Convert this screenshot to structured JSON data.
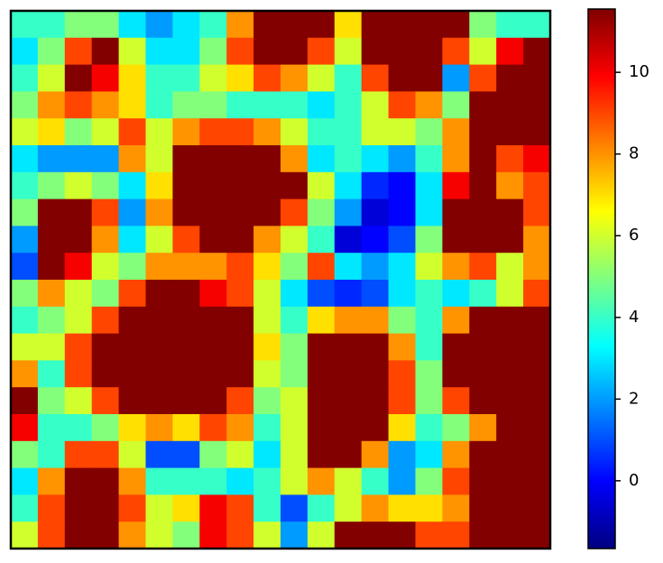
{
  "chart_data": {
    "type": "heatmap",
    "colormap": "jet",
    "zlim": [
      -1.66,
      11.55
    ],
    "zticks": [
      0,
      2,
      4,
      6,
      8,
      10
    ],
    "values": [
      [
        4,
        4,
        5,
        5,
        3,
        2,
        3,
        4,
        8,
        11.5,
        11.5,
        11.5,
        7,
        11.5,
        11.5,
        11.5,
        11.5,
        5,
        4,
        4
      ],
      [
        3,
        5,
        9,
        11.5,
        6,
        3,
        3,
        5,
        9,
        11.5,
        11.5,
        9,
        6,
        11.5,
        11.5,
        11.5,
        9,
        6,
        10,
        11.5
      ],
      [
        4,
        6,
        11.5,
        10,
        7,
        4,
        4,
        6,
        7,
        9,
        8,
        6,
        4,
        9,
        11.5,
        11.5,
        2,
        9,
        11.5,
        11.5
      ],
      [
        5,
        8,
        9,
        8,
        7,
        4,
        5,
        5,
        4,
        4,
        4,
        3,
        4,
        6,
        9,
        8,
        5,
        11.5,
        11.5,
        11.5
      ],
      [
        6,
        7,
        5,
        6,
        9,
        6,
        8,
        9,
        9,
        8,
        6,
        4,
        4,
        6,
        6,
        5,
        8,
        11.5,
        11.5,
        11.5
      ],
      [
        3,
        2,
        2,
        2,
        8,
        6,
        11.5,
        11.5,
        11.5,
        11.5,
        8,
        3,
        4,
        3,
        2,
        4,
        8,
        11.5,
        9,
        10
      ],
      [
        4,
        5,
        6,
        5,
        3,
        7,
        11.5,
        11.5,
        11.5,
        11.5,
        11.5,
        6,
        3,
        0.5,
        0,
        3,
        10,
        11.5,
        8,
        9
      ],
      [
        5,
        11.5,
        11.5,
        9,
        2,
        8,
        11.5,
        11.5,
        11.5,
        11.5,
        9,
        5,
        2,
        -0.5,
        0,
        3,
        11.5,
        11.5,
        11.5,
        9
      ],
      [
        2,
        11.5,
        11.5,
        8,
        3,
        6,
        9,
        11.5,
        11.5,
        8,
        6,
        4,
        -0.5,
        0,
        1,
        5,
        11.5,
        11.5,
        11.5,
        8
      ],
      [
        1,
        11.5,
        10,
        6,
        5,
        8,
        8,
        8,
        9,
        7,
        5,
        9,
        3,
        2,
        3,
        6,
        8,
        9,
        6,
        8
      ],
      [
        5,
        8,
        6,
        5,
        9,
        11.5,
        11.5,
        10,
        9,
        6,
        3,
        1,
        0.5,
        1,
        3,
        4,
        3,
        4,
        6,
        9
      ],
      [
        4,
        5,
        6,
        9,
        11.5,
        11.5,
        11.5,
        11.5,
        11.5,
        6,
        4,
        7,
        8,
        8,
        5,
        4,
        8,
        11.5,
        11.5,
        11.5
      ],
      [
        6,
        6,
        9,
        11.5,
        11.5,
        11.5,
        11.5,
        11.5,
        11.5,
        7,
        5,
        11.5,
        11.5,
        11.5,
        8,
        4,
        11.5,
        11.5,
        11.5,
        11.5
      ],
      [
        8,
        4,
        9,
        11.5,
        11.5,
        11.5,
        11.5,
        11.5,
        11.5,
        6,
        5,
        11.5,
        11.5,
        11.5,
        9,
        5,
        11.5,
        11.5,
        11.5,
        11.5
      ],
      [
        11.5,
        5,
        6,
        9,
        11.5,
        11.5,
        11.5,
        11.5,
        9,
        5,
        6,
        11.5,
        11.5,
        11.5,
        9,
        5,
        9,
        11.5,
        11.5,
        11.5
      ],
      [
        10,
        4,
        4,
        5,
        7,
        8,
        7,
        9,
        8,
        4,
        6,
        11.5,
        11.5,
        11.5,
        7,
        4,
        5,
        8,
        11.5,
        11.5
      ],
      [
        5,
        4,
        9,
        9,
        6,
        1,
        1,
        5,
        6,
        3,
        6,
        11.5,
        11.5,
        8,
        2,
        3,
        8,
        11.5,
        11.5,
        11.5
      ],
      [
        3,
        8,
        11.5,
        11.5,
        8,
        4,
        4,
        4,
        3,
        4,
        6,
        8,
        6,
        4,
        2,
        5,
        9,
        11.5,
        11.5,
        11.5
      ],
      [
        4,
        9,
        11.5,
        11.5,
        9,
        6,
        7,
        10,
        9,
        4,
        1,
        4,
        6,
        8,
        7,
        7,
        8,
        11.5,
        11.5,
        11.5
      ],
      [
        6,
        9,
        11.5,
        11.5,
        8,
        6,
        5,
        10,
        9,
        6,
        2,
        6,
        11.5,
        11.5,
        11.5,
        9,
        9,
        11.5,
        11.5,
        11.5
      ]
    ]
  }
}
